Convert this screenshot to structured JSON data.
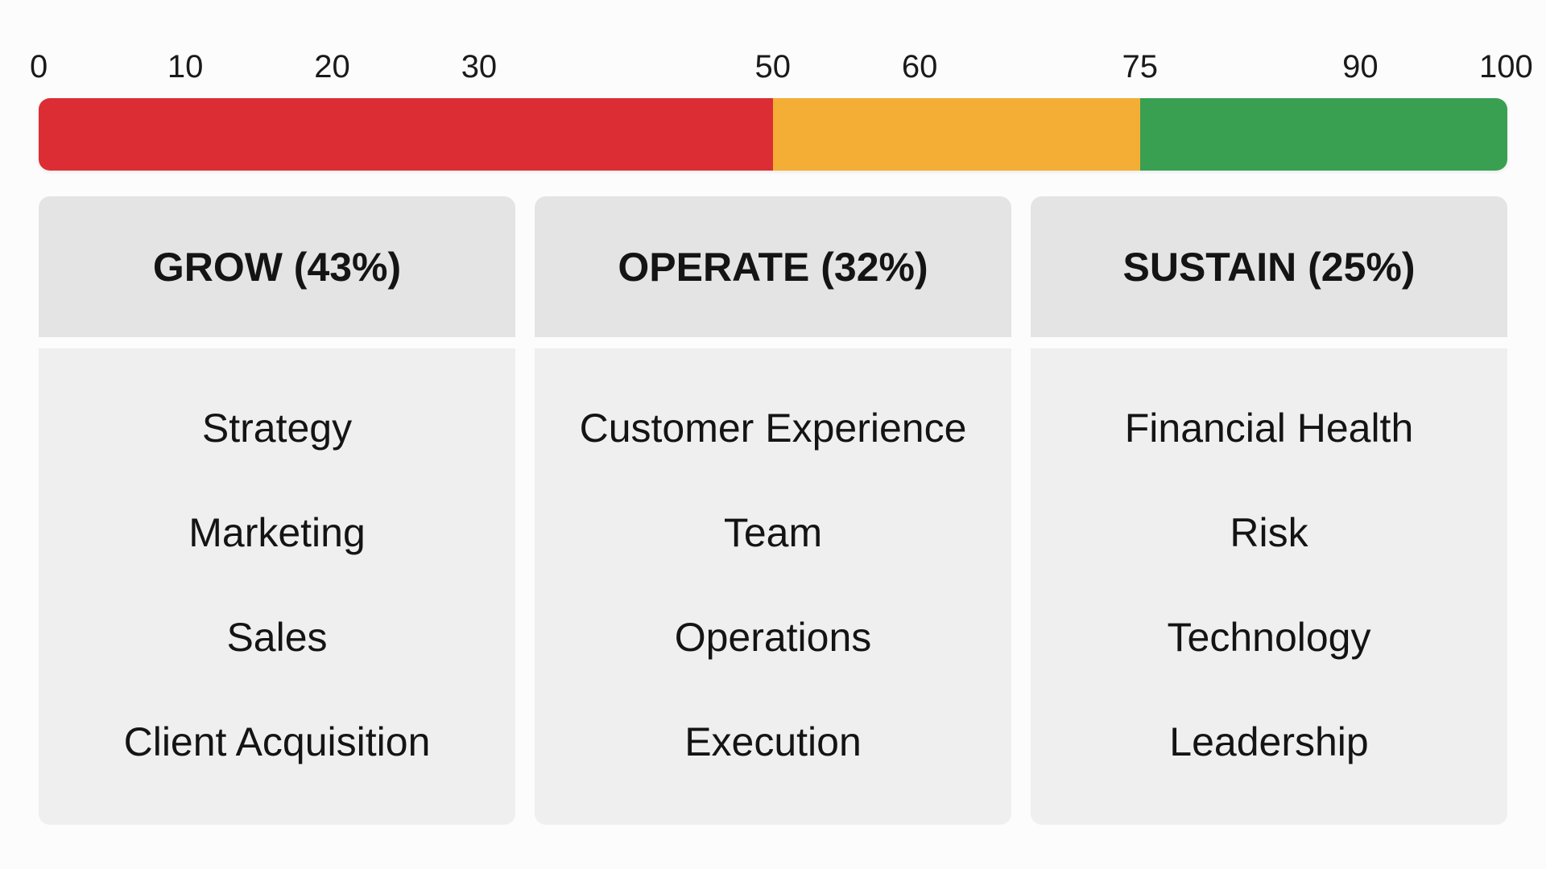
{
  "scale": {
    "tick_labels": [
      "0",
      "10",
      "20",
      "30",
      "50",
      "60",
      "75",
      "90",
      "100"
    ],
    "tick_values": [
      0,
      10,
      20,
      30,
      50,
      60,
      75,
      90,
      100
    ],
    "segments": [
      {
        "from": 0,
        "to": 50,
        "color": "#dc2d34"
      },
      {
        "from": 50,
        "to": 75,
        "color": "#f4ae35"
      },
      {
        "from": 75,
        "to": 100,
        "color": "#39a052"
      }
    ]
  },
  "columns": [
    {
      "title": "GROW (43%)",
      "items": [
        "Strategy",
        "Marketing",
        "Sales",
        "Client Acquisition"
      ]
    },
    {
      "title": "OPERATE (32%)",
      "items": [
        "Customer Experience",
        "Team",
        "Operations",
        "Execution"
      ]
    },
    {
      "title": "SUSTAIN (25%)",
      "items": [
        "Financial Health",
        "Risk",
        "Technology",
        "Leadership"
      ]
    }
  ]
}
